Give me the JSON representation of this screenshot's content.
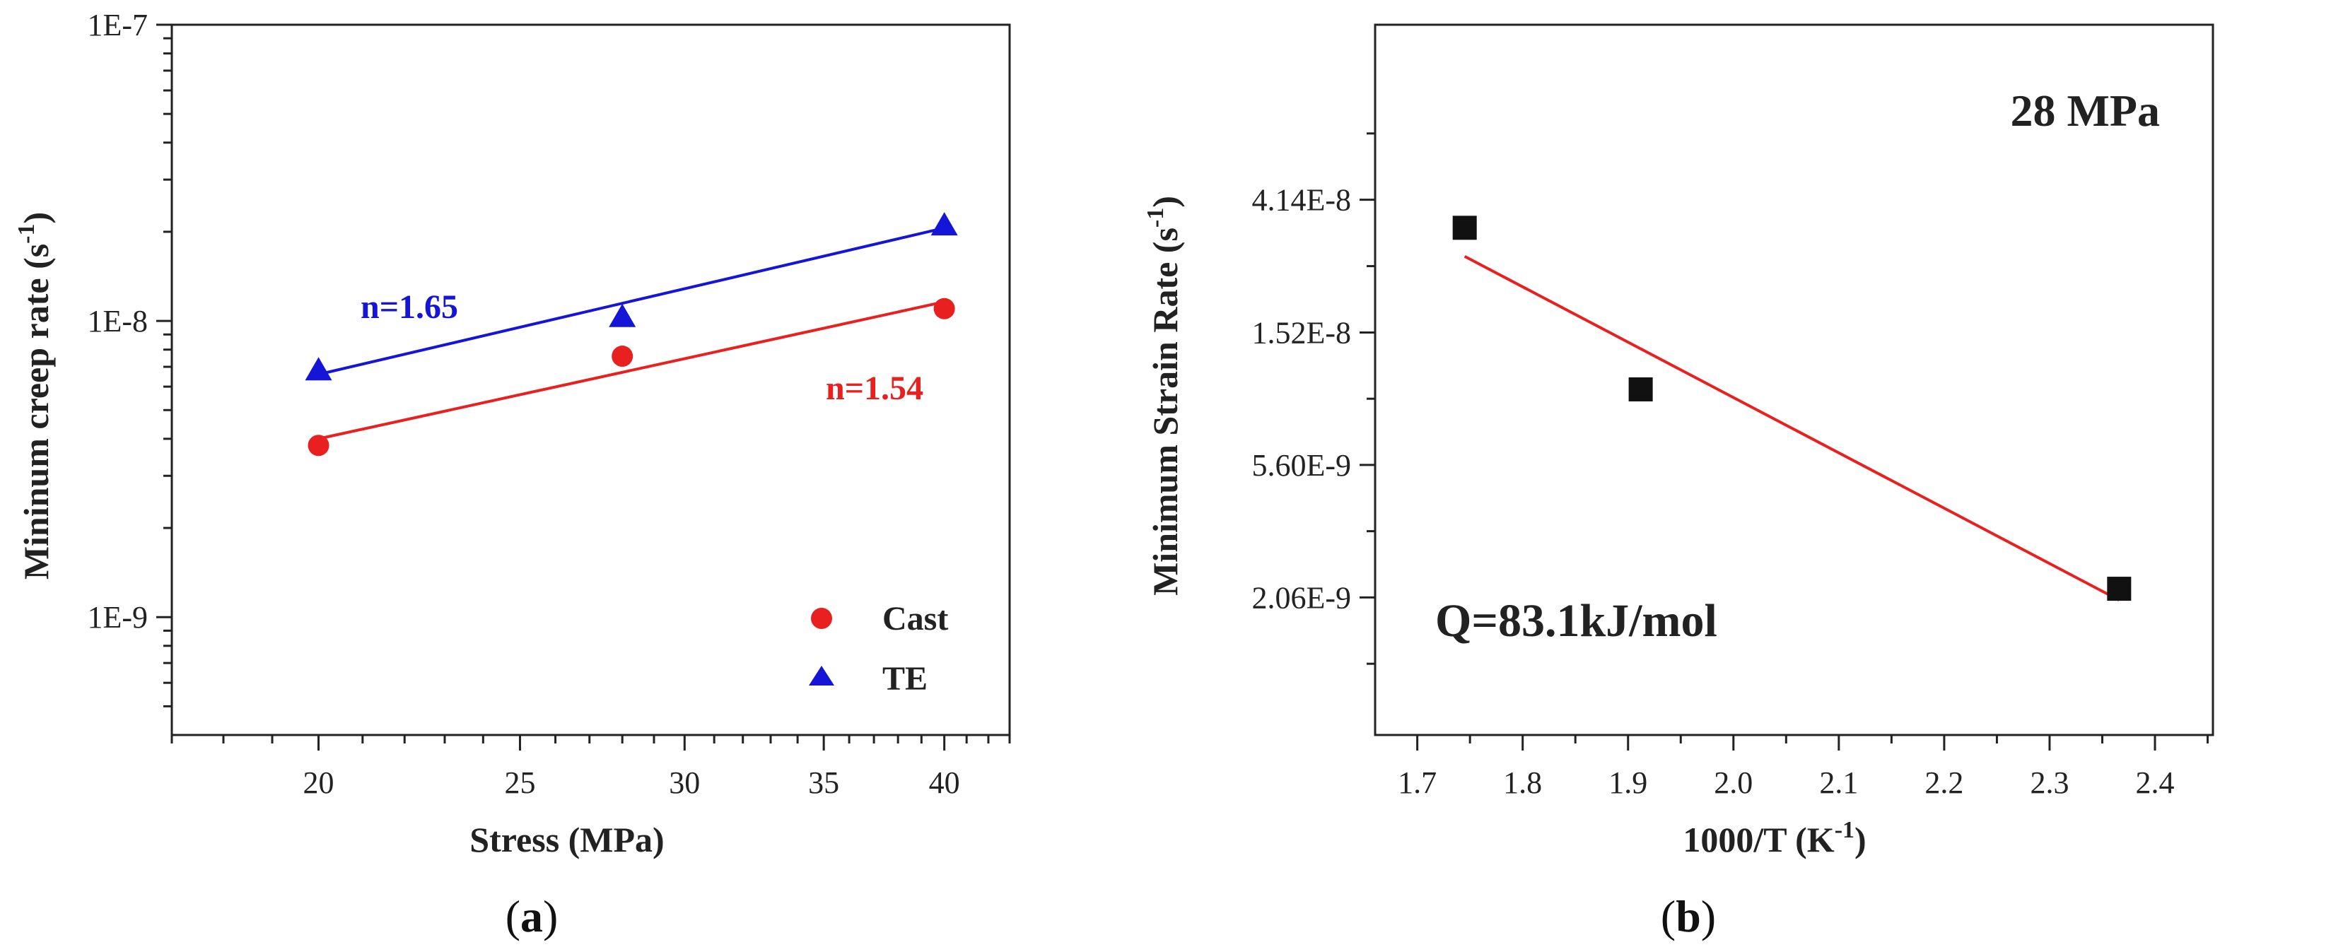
{
  "chart_data": [
    {
      "type": "scatter",
      "panel_label": {
        "pre": "(",
        "letter": "a",
        "post": ")"
      },
      "xlabel": "Stress (MPa)",
      "ylabel": {
        "text": "Mininum creep rate (s",
        "sup": "-1",
        "close": ")"
      },
      "x_scale": "log",
      "y_scale": "log",
      "xlim": [
        17,
        43
      ],
      "ylim": [
        4e-10,
        1e-07
      ],
      "x_ticks": [
        {
          "value": 20,
          "label": "20"
        },
        {
          "value": 25,
          "label": "25"
        },
        {
          "value": 30,
          "label": "30"
        },
        {
          "value": 35,
          "label": "35"
        },
        {
          "value": 40,
          "label": "40"
        }
      ],
      "y_ticks": [
        {
          "value": 1e-07,
          "label": "1E-7"
        },
        {
          "value": 1e-08,
          "label": "1E-8"
        },
        {
          "value": 1e-09,
          "label": "1E-9"
        }
      ],
      "series": [
        {
          "name": "Cast",
          "marker": "circle",
          "color": "#e82020",
          "points": [
            [
              20,
              3.8e-09
            ],
            [
              28,
              7.6e-09
            ],
            [
              40,
              1.1e-08
            ]
          ],
          "fit": {
            "x": [
              20,
              40
            ],
            "y": [
              4e-09,
              1.16e-08
            ]
          },
          "fit_label": "n=1.54"
        },
        {
          "name": "TE",
          "marker": "triangle",
          "color": "#1515d8",
          "points": [
            [
              20,
              6.8e-09
            ],
            [
              28,
              1.03e-08
            ],
            [
              40,
              2.1e-08
            ]
          ],
          "fit": {
            "x": [
              20,
              40
            ],
            "y": [
              6.6e-09,
              2.06e-08
            ]
          },
          "fit_label": "n=1.65"
        }
      ]
    },
    {
      "type": "scatter",
      "panel_label": {
        "pre": "(",
        "letter": "b",
        "post": ")"
      },
      "xlabel": {
        "text": "1000/T (K",
        "sup": "-1",
        "close": ")"
      },
      "ylabel": {
        "text": "Minimum Strain Rate (s",
        "sup": "-1",
        "close": ")"
      },
      "x_scale": "linear",
      "y_scale": "log",
      "xlim": [
        1.66,
        2.455
      ],
      "ylim": [
        7.3e-10,
        1.55e-07
      ],
      "x_ticks": [
        {
          "value": 1.7,
          "label": "1.7"
        },
        {
          "value": 1.8,
          "label": "1.8"
        },
        {
          "value": 1.9,
          "label": "1.9"
        },
        {
          "value": 2.0,
          "label": "2.0"
        },
        {
          "value": 2.1,
          "label": "2.1"
        },
        {
          "value": 2.2,
          "label": "2.2"
        },
        {
          "value": 2.3,
          "label": "2.3"
        },
        {
          "value": 2.4,
          "label": "2.4"
        }
      ],
      "y_ticks": [
        {
          "value": 4.14e-08,
          "label": "4.14E-8"
        },
        {
          "value": 1.52e-08,
          "label": "1.52E-8"
        },
        {
          "value": 5.6e-09,
          "label": "5.60E-9"
        },
        {
          "value": 2.06e-09,
          "label": "2.06E-9"
        }
      ],
      "series": [
        {
          "name": "28 MPa",
          "marker": "square",
          "color": "#111111",
          "points": [
            [
              1.745,
              3.35e-08
            ],
            [
              1.912,
              9.9e-09
            ],
            [
              2.366,
              2.2e-09
            ]
          ],
          "fit": {
            "x": [
              1.745,
              2.366
            ],
            "y": [
              2.7e-08,
              2.02e-09
            ],
            "color": "#e82020"
          }
        }
      ],
      "annotations": {
        "condition": "28 MPa",
        "activation_energy": "Q=83.1kJ/mol"
      }
    }
  ]
}
